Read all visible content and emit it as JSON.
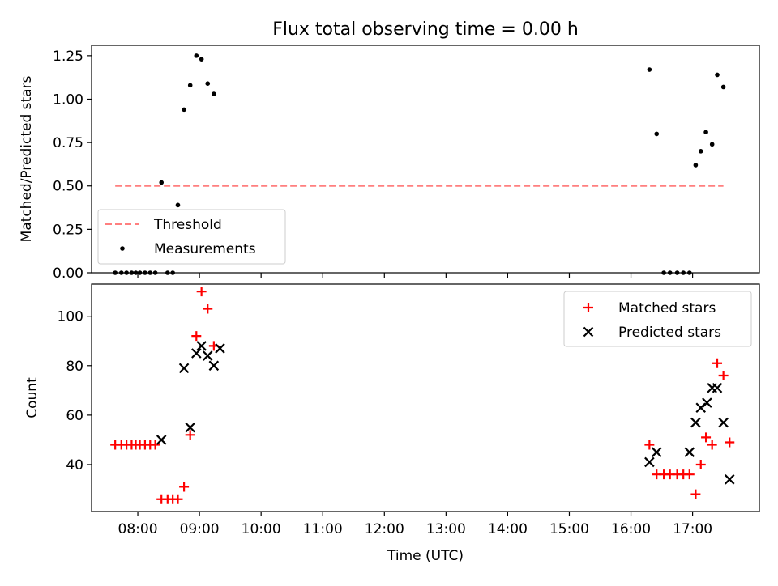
{
  "figure": {
    "title": "Flux total observing time = 0.00 h"
  },
  "chart_data": [
    {
      "type": "scatter",
      "panel": "top",
      "title": "Flux total observing time = 0.00 h",
      "xlabel": "",
      "ylabel": "Matched/Predicted stars",
      "xlim": [
        "07:15",
        "18:05"
      ],
      "ylim": [
        0,
        1.31
      ],
      "yticks": [
        "0.00",
        "0.25",
        "0.50",
        "0.75",
        "1.00",
        "1.25"
      ],
      "ytick_values": [
        0,
        0.25,
        0.5,
        0.75,
        1.0,
        1.25
      ],
      "xticks": [
        "08:00",
        "09:00",
        "10:00",
        "11:00",
        "12:00",
        "13:00",
        "14:00",
        "15:00",
        "16:00",
        "17:00"
      ],
      "xtick_labels_visible": false,
      "legend_position": "lower-left",
      "series": [
        {
          "name": "Threshold",
          "kind": "line",
          "style": "dashed",
          "color": "#ff7f7f",
          "x": [
            "07:38",
            "17:30"
          ],
          "y": [
            0.5,
            0.5
          ]
        },
        {
          "name": "Measurements",
          "kind": "points",
          "color": "#000000",
          "x": [
            "07:38",
            "07:44",
            "07:49",
            "07:54",
            "07:58",
            "08:02",
            "08:07",
            "08:12",
            "08:17",
            "08:23",
            "08:29",
            "08:34",
            "08:39",
            "08:45",
            "08:51",
            "08:57",
            "09:02",
            "09:08",
            "09:14",
            "16:18",
            "16:25",
            "16:32",
            "16:38",
            "16:45",
            "16:51",
            "16:57",
            "17:03",
            "17:08",
            "17:13",
            "17:19",
            "17:24",
            "17:30"
          ],
          "y": [
            0,
            0,
            0,
            0,
            0,
            0,
            0,
            0,
            0,
            0.52,
            0,
            0,
            0.39,
            0.94,
            1.08,
            1.25,
            1.23,
            1.09,
            1.03,
            1.17,
            0.8,
            0,
            0,
            0,
            0,
            0,
            0.62,
            0.7,
            0.81,
            0.74,
            1.14,
            1.07
          ]
        }
      ]
    },
    {
      "type": "scatter",
      "panel": "bottom",
      "xlabel": "Time (UTC)",
      "ylabel": "Count",
      "xlim": [
        "07:15",
        "18:05"
      ],
      "ylim": [
        21,
        113
      ],
      "yticks": [
        "40",
        "60",
        "80",
        "100"
      ],
      "ytick_values": [
        40,
        60,
        80,
        100
      ],
      "xticks": [
        "08:00",
        "09:00",
        "10:00",
        "11:00",
        "12:00",
        "13:00",
        "14:00",
        "15:00",
        "16:00",
        "17:00"
      ],
      "legend_position": "top-right",
      "series": [
        {
          "name": "Matched stars",
          "marker": "plus",
          "color": "#ff0000",
          "x": [
            "07:38",
            "07:44",
            "07:49",
            "07:54",
            "07:58",
            "08:02",
            "08:07",
            "08:12",
            "08:17",
            "08:23",
            "08:29",
            "08:34",
            "08:39",
            "08:45",
            "08:51",
            "08:57",
            "09:02",
            "09:08",
            "09:14",
            "16:18",
            "16:25",
            "16:32",
            "16:38",
            "16:45",
            "16:51",
            "16:57",
            "17:03",
            "17:08",
            "17:13",
            "17:19",
            "17:24",
            "17:30",
            "17:36"
          ],
          "y": [
            48,
            48,
            48,
            48,
            48,
            48,
            48,
            48,
            48,
            26,
            26,
            26,
            26,
            31,
            52,
            92,
            110,
            103,
            88,
            48,
            36,
            36,
            36,
            36,
            36,
            36,
            28,
            40,
            51,
            48,
            81,
            76,
            49
          ]
        },
        {
          "name": "Predicted stars",
          "marker": "x",
          "color": "#000000",
          "x": [
            "08:23",
            "08:45",
            "08:51",
            "08:57",
            "09:02",
            "09:08",
            "09:14",
            "09:20",
            "16:18",
            "16:25",
            "16:57",
            "17:03",
            "17:08",
            "17:14",
            "17:19",
            "17:24",
            "17:30",
            "17:36"
          ],
          "y": [
            50,
            79,
            55,
            85,
            88,
            84,
            80,
            87,
            41,
            45,
            45,
            57,
            63,
            65,
            71,
            71,
            57,
            34
          ]
        }
      ]
    }
  ]
}
